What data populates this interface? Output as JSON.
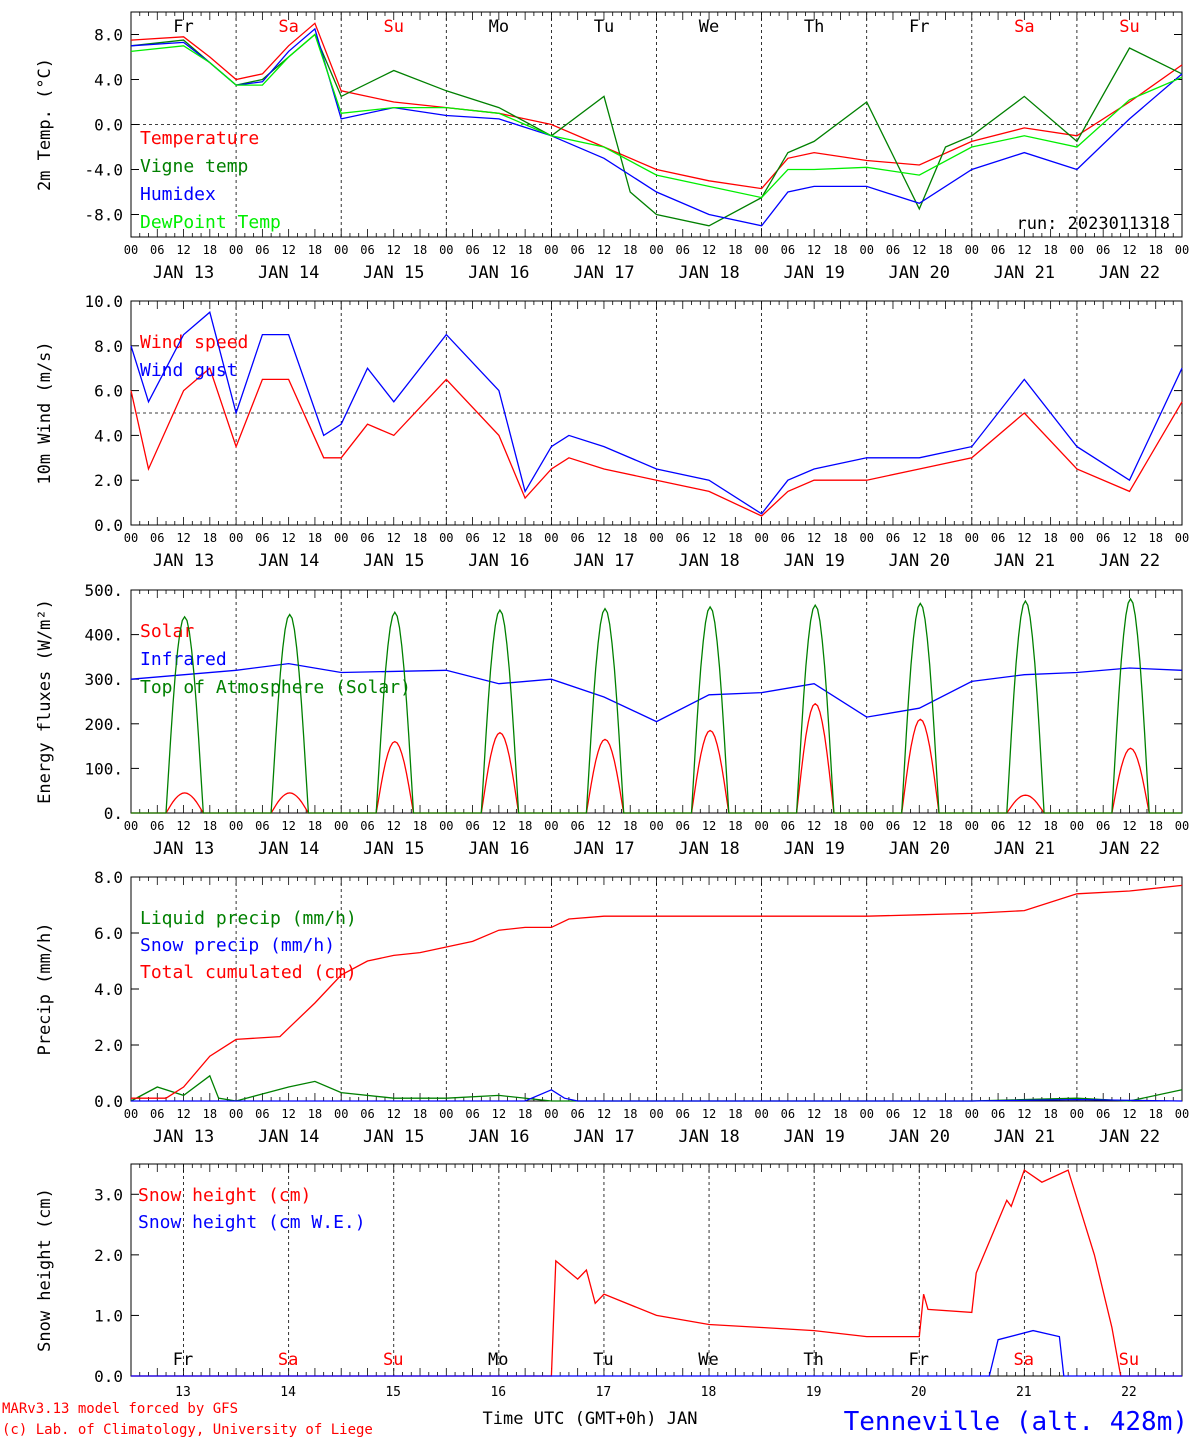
{
  "footer": {
    "model_line": "MARv3.13 model forced by GFS",
    "credit_line": "(c) Lab. of Climatology, University of Liege",
    "xlabel": "Time UTC (GMT+0h) JAN",
    "station": "Tenneville (alt. 428m)"
  },
  "colors": {
    "red": "#ff0000",
    "green": "#008000",
    "blue": "#0000ff",
    "lightgreen": "#00ee00"
  },
  "chart_data": [
    {
      "id": "temperature",
      "type": "line",
      "ylabel": "2m Temp. (°C)",
      "ylim": [
        -10,
        10
      ],
      "yticks": [
        8,
        4,
        0,
        -4,
        -8
      ],
      "ytick_labels": [
        "8.0",
        "4.0",
        "0.0",
        "-4.0",
        "-8.0"
      ],
      "hline": 0,
      "days": [
        "Fr",
        "Sa",
        "Su",
        "Mo",
        "Tu",
        "We",
        "Th",
        "Fr",
        "Sa",
        "Su"
      ],
      "weekend_days": [
        1,
        2,
        8,
        9
      ],
      "hour_ticks": [
        "00",
        "06",
        "12",
        "18"
      ],
      "date_labels": [
        "JAN 13",
        "JAN 14",
        "JAN 15",
        "JAN 16",
        "JAN 17",
        "JAN 18",
        "JAN 19",
        "JAN 20",
        "JAN 21",
        "JAN 22"
      ],
      "annotation": "run: 2023011318",
      "x_unit": "hours since 2023-01-13 00 UTC",
      "series": [
        {
          "name": "Temperature",
          "color": "#ff0000",
          "x": [
            0,
            12,
            18,
            24,
            30,
            36,
            42,
            48,
            60,
            72,
            84,
            96,
            108,
            120,
            132,
            144,
            150,
            156,
            168,
            180,
            192,
            204,
            216,
            228,
            240
          ],
          "y": [
            7.5,
            7.8,
            6,
            4,
            4.5,
            7,
            9,
            3,
            2,
            1.5,
            1,
            0,
            -2,
            -4,
            -5,
            -5.7,
            -3,
            -2.5,
            -3.2,
            -3.6,
            -1.5,
            -0.3,
            -1,
            2,
            5.3
          ]
        },
        {
          "name": "Vigne temp",
          "color": "#008000",
          "x": [
            0,
            12,
            18,
            24,
            30,
            36,
            42,
            48,
            60,
            72,
            84,
            96,
            108,
            114,
            120,
            132,
            144,
            150,
            156,
            168,
            180,
            186,
            192,
            204,
            216,
            228,
            240
          ],
          "y": [
            7,
            7.5,
            5.5,
            3.5,
            4,
            6,
            8,
            2.5,
            4.8,
            3,
            1.5,
            -1,
            2.5,
            -6,
            -8,
            -9,
            -6.5,
            -2.5,
            -1.5,
            2,
            -7.5,
            -2,
            -1,
            2.5,
            -1.5,
            6.8,
            4.5
          ]
        },
        {
          "name": "Humidex",
          "color": "#0000ff",
          "x": [
            0,
            12,
            18,
            24,
            30,
            36,
            42,
            48,
            60,
            72,
            84,
            96,
            108,
            120,
            132,
            144,
            150,
            156,
            168,
            180,
            192,
            204,
            216,
            228,
            240
          ],
          "y": [
            7,
            7.3,
            5.5,
            3.5,
            3.8,
            6.5,
            8.5,
            0.5,
            1.5,
            0.8,
            0.5,
            -1,
            -3,
            -6,
            -8,
            -9,
            -6,
            -5.5,
            -5.5,
            -7,
            -4,
            -2.5,
            -4,
            0.5,
            4.5
          ]
        },
        {
          "name": "DewPoint Temp",
          "color": "#00ee00",
          "x": [
            0,
            12,
            18,
            24,
            30,
            36,
            42,
            48,
            60,
            72,
            84,
            96,
            108,
            120,
            132,
            144,
            150,
            156,
            168,
            180,
            192,
            204,
            216,
            228,
            240
          ],
          "y": [
            6.5,
            7,
            5.5,
            3.5,
            3.5,
            6,
            8,
            1,
            1.5,
            1.5,
            1,
            -1,
            -2,
            -4.5,
            -5.5,
            -6.5,
            -4,
            -4,
            -3.8,
            -4.5,
            -2,
            -1,
            -2,
            2.2,
            4.2
          ]
        }
      ]
    },
    {
      "id": "wind",
      "type": "line",
      "ylabel": "10m Wind (m/s)",
      "ylim": [
        0,
        10
      ],
      "yticks": [
        10,
        8,
        6,
        4,
        2,
        0
      ],
      "ytick_labels": [
        "10.0",
        "8.0",
        "6.0",
        "4.0",
        "2.0",
        "0.0"
      ],
      "hline": 5,
      "hour_ticks": [
        "00",
        "06",
        "12",
        "18"
      ],
      "date_labels": [
        "JAN 13",
        "JAN 14",
        "JAN 15",
        "JAN 16",
        "JAN 17",
        "JAN 18",
        "JAN 19",
        "JAN 20",
        "JAN 21",
        "JAN 22"
      ],
      "x_unit": "hours since 2023-01-13 00 UTC",
      "series": [
        {
          "name": "Wind speed",
          "color": "#ff0000",
          "x": [
            0,
            4,
            12,
            18,
            24,
            30,
            36,
            44,
            48,
            54,
            60,
            72,
            84,
            90,
            96,
            100,
            108,
            120,
            132,
            144,
            150,
            156,
            168,
            180,
            192,
            204,
            216,
            228,
            240
          ],
          "y": [
            6,
            2.5,
            6,
            7,
            3.5,
            6.5,
            6.5,
            3,
            3,
            4.5,
            4,
            6.5,
            4,
            1.2,
            2.5,
            3,
            2.5,
            2,
            1.5,
            0.4,
            1.5,
            2,
            2,
            2.5,
            3,
            5,
            2.5,
            1.5,
            5.5
          ]
        },
        {
          "name": "Wind gust",
          "color": "#0000ff",
          "x": [
            0,
            4,
            12,
            18,
            24,
            30,
            36,
            44,
            48,
            54,
            60,
            72,
            84,
            90,
            96,
            100,
            108,
            120,
            132,
            144,
            150,
            156,
            168,
            180,
            192,
            204,
            216,
            228,
            240
          ],
          "y": [
            8,
            5.5,
            8.5,
            9.5,
            5,
            8.5,
            8.5,
            4,
            4.5,
            7,
            5.5,
            8.5,
            6,
            1.5,
            3.5,
            4,
            3.5,
            2.5,
            2,
            0.5,
            2,
            2.5,
            3,
            3,
            3.5,
            6.5,
            3.5,
            2,
            7
          ]
        }
      ]
    },
    {
      "id": "energy",
      "type": "line",
      "ylabel": "Energy fluxes (W/m²)",
      "ylim": [
        0,
        500
      ],
      "yticks": [
        500,
        400,
        300,
        200,
        100,
        0
      ],
      "ytick_labels": [
        "500.",
        "400.",
        "300.",
        "200.",
        "100.",
        "0."
      ],
      "hour_ticks": [
        "00",
        "06",
        "12",
        "18"
      ],
      "date_labels": [
        "JAN 13",
        "JAN 14",
        "JAN 15",
        "JAN 16",
        "JAN 17",
        "JAN 18",
        "JAN 19",
        "JAN 20",
        "JAN 21",
        "JAN 22"
      ],
      "x_unit": "hours since 2023-01-13 00 UTC",
      "daylight_hours": [
        8,
        16.5
      ],
      "series": [
        {
          "name": "Solar",
          "color": "#ff0000",
          "daily_peak": [
            45,
            45,
            160,
            180,
            165,
            185,
            245,
            210,
            40,
            145
          ]
        },
        {
          "name": "Infrared",
          "color": "#0000ff",
          "x": [
            0,
            24,
            36,
            48,
            72,
            84,
            96,
            108,
            120,
            132,
            144,
            156,
            168,
            180,
            192,
            204,
            216,
            228,
            240
          ],
          "y": [
            300,
            320,
            335,
            315,
            320,
            290,
            300,
            260,
            205,
            265,
            270,
            290,
            215,
            235,
            295,
            310,
            315,
            325,
            320
          ]
        },
        {
          "name": "Top of Atmosphere (Solar)",
          "color": "#008000",
          "daily_peak": [
            440,
            445,
            450,
            455,
            458,
            462,
            466,
            470,
            475,
            480
          ]
        }
      ]
    },
    {
      "id": "precip",
      "type": "line",
      "ylabel": "Precip (mm/h)",
      "ylim": [
        0,
        8
      ],
      "yticks": [
        8,
        6,
        4,
        2,
        0
      ],
      "ytick_labels": [
        "8.0",
        "6.0",
        "4.0",
        "2.0",
        "0.0"
      ],
      "hour_ticks": [
        "00",
        "06",
        "12",
        "18"
      ],
      "date_labels": [
        "JAN 13",
        "JAN 14",
        "JAN 15",
        "JAN 16",
        "JAN 17",
        "JAN 18",
        "JAN 19",
        "JAN 20",
        "JAN 21",
        "JAN 22"
      ],
      "x_unit": "hours since 2023-01-13 00 UTC",
      "series": [
        {
          "name": "Liquid precip (mm/h)",
          "color": "#008000",
          "x": [
            0,
            6,
            12,
            18,
            20,
            24,
            36,
            42,
            48,
            60,
            72,
            84,
            96,
            108,
            120,
            144,
            168,
            192,
            216,
            228,
            240
          ],
          "y": [
            0,
            0.5,
            0.2,
            0.9,
            0.1,
            0,
            0.5,
            0.7,
            0.3,
            0.1,
            0.1,
            0.2,
            0,
            0,
            0,
            0,
            0,
            0,
            0.1,
            0,
            0.4
          ]
        },
        {
          "name": "Snow precip (mm/h)",
          "color": "#0000ff",
          "x": [
            0,
            24,
            48,
            60,
            72,
            90,
            96,
            99,
            102,
            120,
            144,
            168,
            192,
            216,
            240
          ],
          "y": [
            0,
            0,
            0,
            0,
            0,
            0,
            0.4,
            0.1,
            0,
            0,
            0,
            0,
            0,
            0.05,
            0
          ]
        },
        {
          "name": "Total cumulated (cm)",
          "color": "#ff0000",
          "x": [
            0,
            8,
            12,
            18,
            24,
            34,
            36,
            42,
            48,
            54,
            60,
            66,
            72,
            78,
            84,
            90,
            96,
            100,
            108,
            120,
            144,
            168,
            180,
            192,
            204,
            216,
            228,
            240
          ],
          "y": [
            0.1,
            0.1,
            0.5,
            1.6,
            2.2,
            2.3,
            2.6,
            3.5,
            4.5,
            5,
            5.2,
            5.3,
            5.5,
            5.7,
            6.1,
            6.2,
            6.2,
            6.5,
            6.6,
            6.6,
            6.6,
            6.6,
            6.65,
            6.7,
            6.8,
            7.4,
            7.5,
            7.7
          ]
        }
      ]
    },
    {
      "id": "snow",
      "type": "line",
      "ylabel": "Snow height (cm)",
      "ylim": [
        0,
        3.5
      ],
      "yticks": [
        3,
        2,
        1,
        0
      ],
      "ytick_labels": [
        "3.0",
        "2.0",
        "1.0",
        "0.0"
      ],
      "days": [
        "Fr",
        "Sa",
        "Su",
        "Mo",
        "Tu",
        "We",
        "Th",
        "Fr",
        "Sa",
        "Su"
      ],
      "weekend_days": [
        1,
        2,
        8,
        9
      ],
      "day_numbers": [
        "13",
        "14",
        "15",
        "16",
        "17",
        "18",
        "19",
        "20",
        "21",
        "22"
      ],
      "x_unit": "hours since 2023-01-13 00 UTC",
      "series": [
        {
          "name": "Snow height (cm)",
          "color": "#ff0000",
          "x": [
            0,
            96,
            97,
            102,
            104,
            106,
            108,
            120,
            132,
            144,
            156,
            168,
            180,
            181,
            182,
            192,
            193,
            200,
            201,
            204,
            208,
            214,
            220,
            224,
            226,
            227,
            240
          ],
          "y": [
            0,
            0,
            1.9,
            1.6,
            1.75,
            1.2,
            1.35,
            1,
            0.85,
            0.8,
            0.75,
            0.65,
            0.65,
            1.35,
            1.1,
            1.05,
            1.7,
            2.9,
            2.8,
            3.4,
            3.2,
            3.4,
            2,
            0.8,
            0,
            0,
            0
          ]
        },
        {
          "name": "Snow height (cm W.E.)",
          "color": "#0000ff",
          "x": [
            0,
            196,
            198,
            206,
            212,
            213,
            240
          ],
          "y": [
            0,
            0,
            0.6,
            0.75,
            0.65,
            0,
            0
          ]
        }
      ]
    }
  ]
}
